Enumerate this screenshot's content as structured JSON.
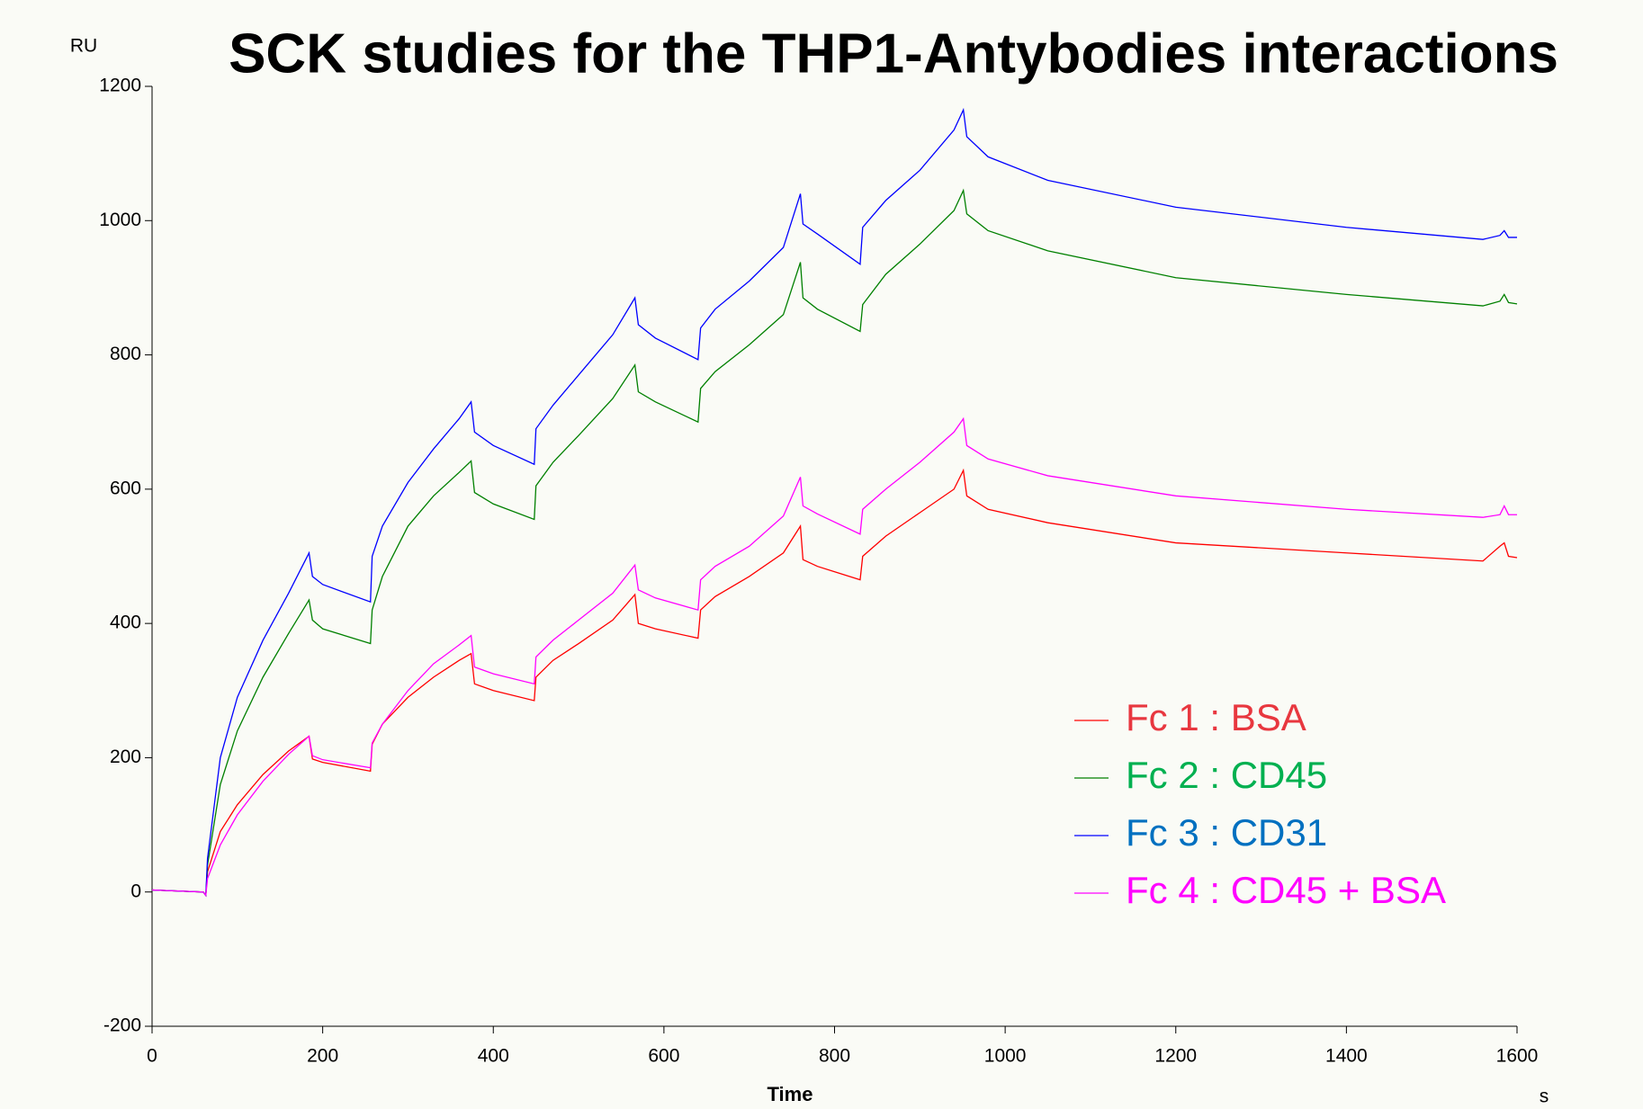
{
  "chart_data": {
    "type": "line",
    "title": "SCK studies for the THP1-Antybodies interactions",
    "x_label": "Time",
    "x_unit": "s",
    "y_label": "RU",
    "x": [
      0,
      60,
      63,
      65,
      80,
      100,
      130,
      160,
      184,
      188,
      200,
      256,
      258,
      270,
      300,
      330,
      360,
      374,
      378,
      400,
      448,
      450,
      470,
      500,
      540,
      566,
      570,
      590,
      640,
      643,
      660,
      700,
      740,
      760,
      763,
      780,
      830,
      833,
      860,
      900,
      940,
      951,
      955,
      980,
      1050,
      1200,
      1400,
      1560,
      1580,
      1585,
      1590,
      1600
    ],
    "series": [
      {
        "name": "Fc 1 : BSA",
        "color": "#ff0000",
        "label_color": "#e8373f",
        "values": [
          3,
          0,
          -5,
          30,
          90,
          130,
          175,
          210,
          232,
          198,
          193,
          180,
          220,
          250,
          290,
          320,
          345,
          355,
          310,
          300,
          285,
          320,
          345,
          370,
          405,
          443,
          400,
          392,
          378,
          420,
          440,
          470,
          505,
          545,
          495,
          485,
          465,
          500,
          530,
          565,
          600,
          628,
          590,
          570,
          550,
          520,
          505,
          493,
          515,
          520,
          500,
          498
        ]
      },
      {
        "name": "Fc 2 : CD45",
        "color": "#008000",
        "label_color": "#00b050",
        "values": [
          3,
          0,
          -5,
          40,
          160,
          240,
          320,
          385,
          435,
          405,
          392,
          370,
          420,
          470,
          545,
          590,
          625,
          642,
          595,
          578,
          555,
          605,
          640,
          680,
          735,
          785,
          745,
          730,
          700,
          750,
          775,
          815,
          860,
          938,
          885,
          868,
          835,
          875,
          920,
          965,
          1015,
          1045,
          1010,
          985,
          955,
          915,
          890,
          873,
          880,
          890,
          878,
          876
        ]
      },
      {
        "name": "Fc 3 : CD31",
        "color": "#0000ff",
        "label_color": "#0070c0",
        "values": [
          3,
          0,
          -5,
          50,
          200,
          290,
          375,
          445,
          505,
          470,
          458,
          432,
          500,
          545,
          610,
          660,
          705,
          730,
          685,
          665,
          637,
          690,
          725,
          770,
          830,
          885,
          845,
          825,
          793,
          840,
          868,
          910,
          960,
          1040,
          995,
          980,
          935,
          990,
          1030,
          1075,
          1135,
          1165,
          1125,
          1095,
          1060,
          1020,
          990,
          972,
          978,
          985,
          975,
          975
        ]
      },
      {
        "name": "Fc 4 : CD45 + BSA",
        "color": "#ff00ff",
        "label_color": "#ff00ff",
        "values": [
          3,
          0,
          -5,
          20,
          70,
          115,
          165,
          205,
          232,
          203,
          197,
          185,
          222,
          250,
          300,
          340,
          368,
          382,
          335,
          325,
          310,
          350,
          375,
          405,
          445,
          487,
          450,
          438,
          420,
          465,
          485,
          515,
          560,
          618,
          575,
          563,
          533,
          570,
          600,
          640,
          685,
          705,
          665,
          645,
          620,
          590,
          570,
          558,
          562,
          575,
          562,
          562
        ]
      }
    ],
    "xlim": [
      0,
      1600
    ],
    "xticks": [
      0,
      200,
      400,
      600,
      800,
      1000,
      1200,
      1400,
      1600
    ],
    "ylim": [
      -200,
      1200
    ],
    "yticks": [
      -200,
      0,
      200,
      400,
      600,
      800,
      1000,
      1200
    ],
    "grid": false,
    "legend": "lower right"
  }
}
